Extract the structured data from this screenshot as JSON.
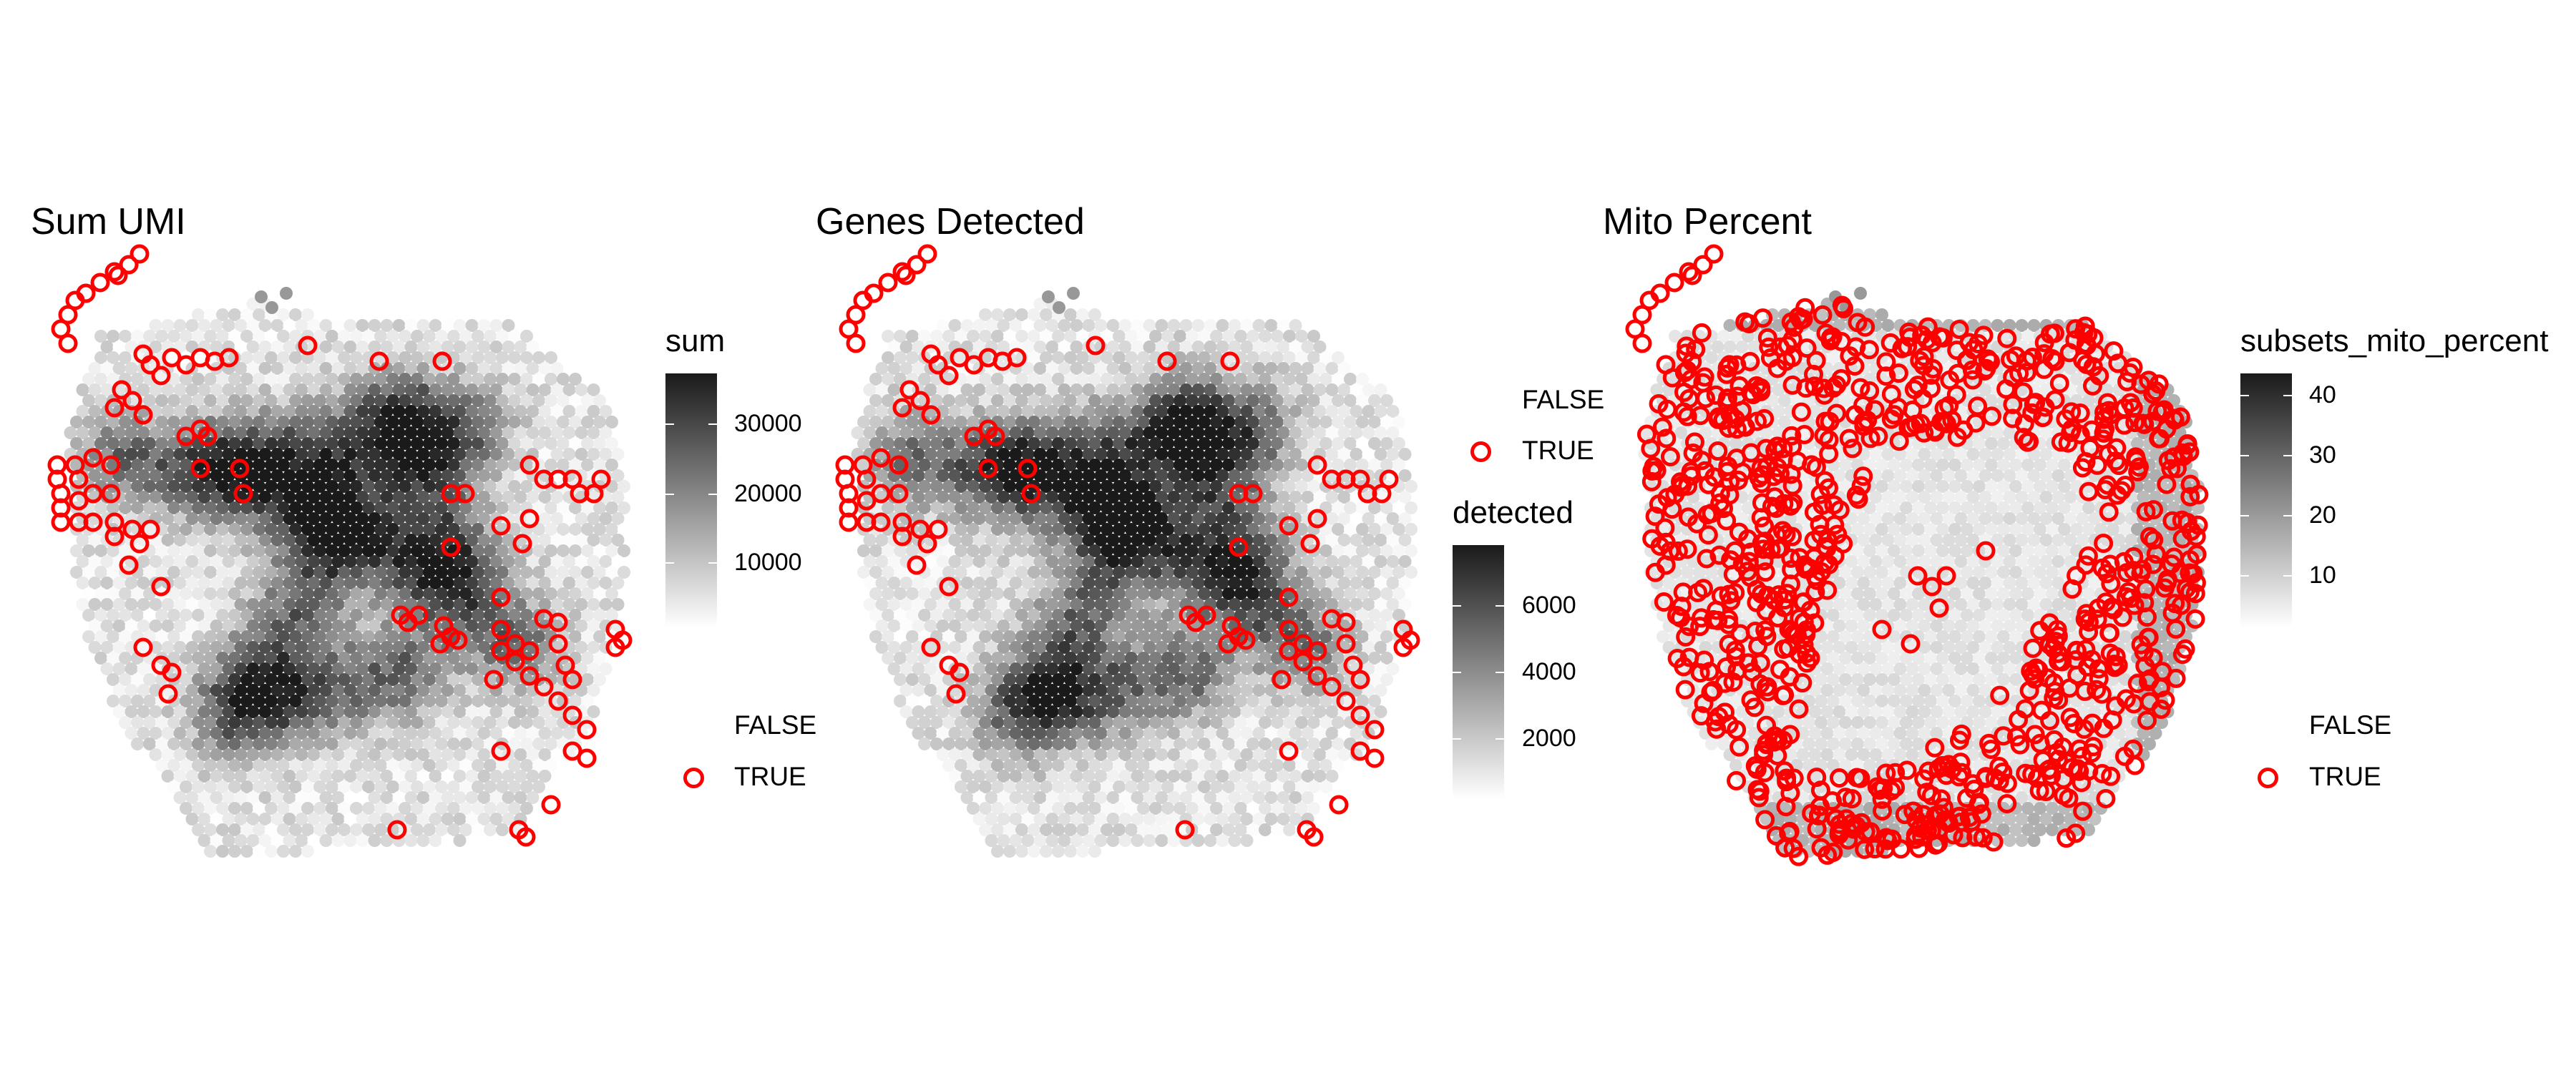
{
  "chart_data": [
    {
      "type": "scatter",
      "title": "Sum UMI",
      "fill_legend": {
        "title": "sum",
        "ticks": [
          "30000",
          "20000",
          "10000"
        ],
        "range": [
          0,
          37000
        ]
      },
      "outline_legend": {
        "entries": [
          "FALSE",
          "TRUE"
        ],
        "colors": [
          "#00000000",
          "#ff0000"
        ]
      },
      "grid": false,
      "axes": false
    },
    {
      "type": "scatter",
      "title": "Genes Detected",
      "fill_legend": {
        "title": "detected",
        "ticks": [
          "6000",
          "4000",
          "2000"
        ],
        "range": [
          0,
          7800
        ]
      },
      "outline_legend": {
        "entries": [
          "FALSE",
          "TRUE"
        ],
        "colors": [
          "#00000000",
          "#ff0000"
        ]
      },
      "grid": false,
      "axes": false
    },
    {
      "type": "scatter",
      "title": "Mito Percent",
      "fill_legend": {
        "title": "subsets_mito_percent",
        "ticks": [
          "40",
          "30",
          "20",
          "10"
        ],
        "range": [
          0,
          43
        ]
      },
      "outline_legend": {
        "entries": [
          "FALSE",
          "TRUE"
        ],
        "colors": [
          "#00000000",
          "#ff0000"
        ]
      },
      "grid": false,
      "axes": false
    }
  ],
  "colors": {
    "fill_low": "#ffffff",
    "fill_high": "#1a1a1a",
    "flag": "#ff0000"
  }
}
